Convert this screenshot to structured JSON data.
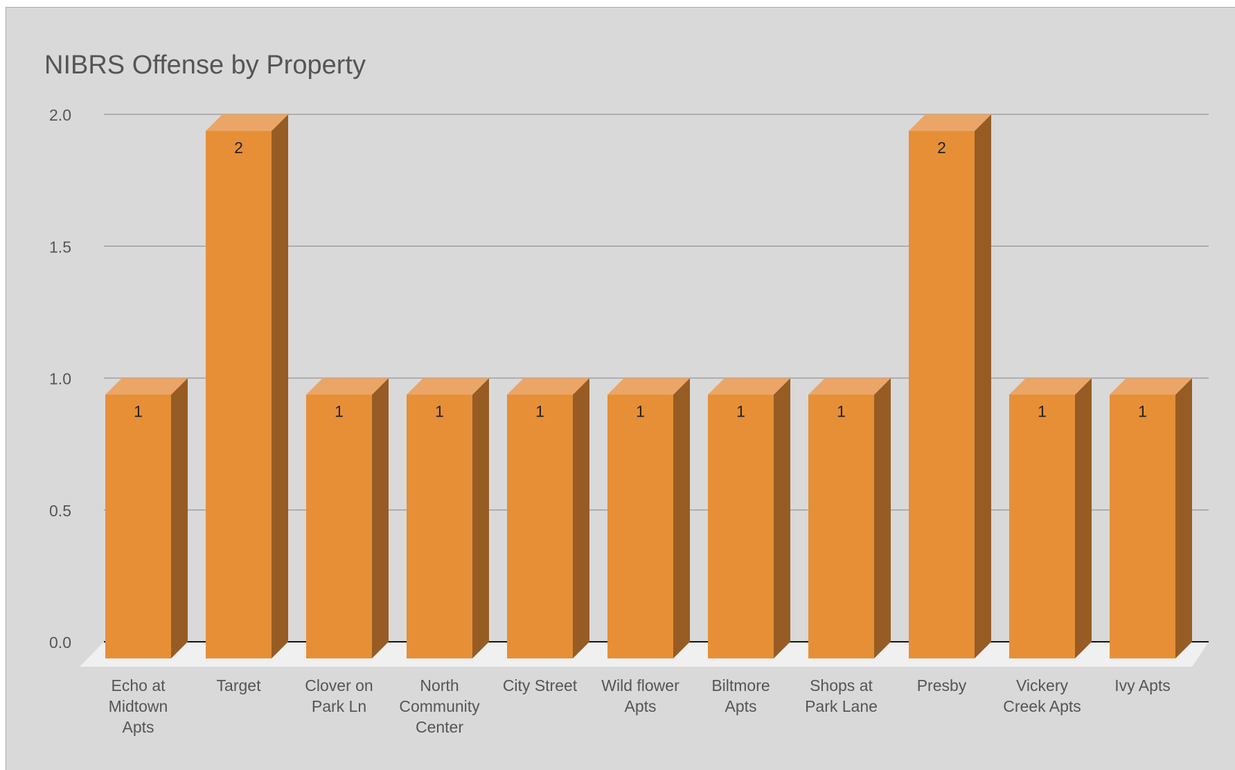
{
  "chart_data": {
    "type": "bar",
    "title": "NIBRS Offense by Property",
    "xlabel": "",
    "ylabel": "",
    "categories": [
      [
        "Echo at",
        "Midtown",
        "Apts"
      ],
      [
        "Target"
      ],
      [
        "Clover on",
        "Park Ln"
      ],
      [
        "North",
        "Community",
        "Center"
      ],
      [
        "City Street"
      ],
      [
        "Wild flower",
        "Apts"
      ],
      [
        "Biltmore",
        "Apts"
      ],
      [
        "Shops at",
        "Park Lane"
      ],
      [
        "Presby"
      ],
      [
        "Vickery",
        "Creek Apts"
      ],
      [
        "Ivy Apts"
      ]
    ],
    "values": [
      1,
      2,
      1,
      1,
      1,
      1,
      1,
      1,
      2,
      1,
      1
    ],
    "ylim": [
      0,
      2
    ],
    "yticks": [
      "0.0",
      "0.5",
      "1.0",
      "1.5",
      "2.0"
    ],
    "grid": true,
    "legend": "none",
    "three_d": true,
    "data_labels": true,
    "colors": {
      "background": "#d9d9d9",
      "bar_front": "#e68f37",
      "bar_top": "#eba566",
      "bar_side": "#965c24",
      "floor": "#f0f0f0",
      "gridline": "#a0a0a0",
      "axis_text": "#555555",
      "data_label": "#222222"
    }
  }
}
